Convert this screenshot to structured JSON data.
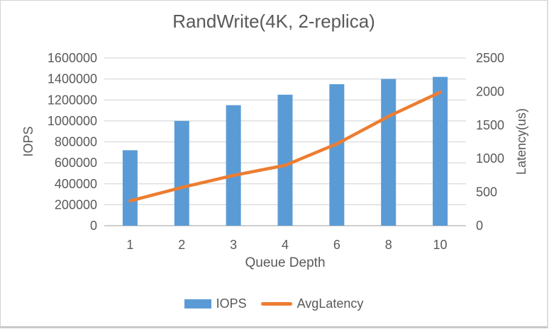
{
  "chart_data": {
    "type": "combo-bar-line",
    "title": "RandWrite(4K, 2-replica)",
    "categories": [
      "1",
      "2",
      "3",
      "4",
      "6",
      "8",
      "10"
    ],
    "xlabel": "Queue Depth",
    "grid": true,
    "legend_position": "bottom",
    "series": [
      {
        "name": "IOPS",
        "type": "bar",
        "axis": "left",
        "color": "#5B9BD5",
        "values": [
          720000,
          1000000,
          1150000,
          1250000,
          1350000,
          1400000,
          1420000
        ]
      },
      {
        "name": "AvgLatency",
        "type": "line",
        "axis": "right",
        "color": "#ED7D31",
        "values": [
          370,
          570,
          750,
          900,
          1220,
          1630,
          1990
        ]
      }
    ],
    "left_axis": {
      "label": "IOPS",
      "min": 0,
      "max": 1600000,
      "step": 200000,
      "ticks": [
        0,
        200000,
        400000,
        600000,
        800000,
        1000000,
        1200000,
        1400000,
        1600000
      ]
    },
    "right_axis": {
      "label": "Latency(us)",
      "min": 0,
      "max": 2500,
      "step": 500,
      "ticks": [
        0,
        500,
        1000,
        1500,
        2000,
        2500
      ]
    },
    "colors": {
      "bar": "#5B9BD5",
      "line": "#ED7D31",
      "text": "#595959",
      "gridline": "#D9D9D9",
      "axisline": "#BFBFBF",
      "background": "#FFFFFF"
    }
  }
}
